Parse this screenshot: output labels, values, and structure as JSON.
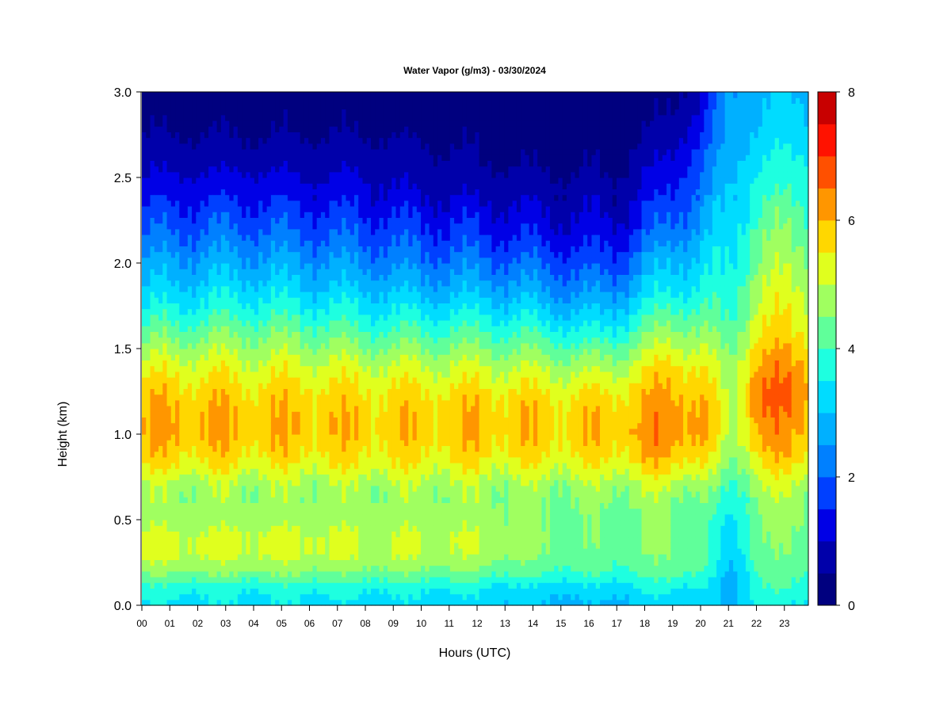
{
  "chart_data": {
    "type": "heatmap",
    "title": "Water Vapor (g/m3) - 03/30/2024",
    "xlabel": "Hours (UTC)",
    "ylabel": "Height (km)",
    "x_ticks": [
      "00",
      "01",
      "02",
      "03",
      "04",
      "05",
      "06",
      "07",
      "08",
      "09",
      "10",
      "11",
      "12",
      "13",
      "14",
      "15",
      "16",
      "17",
      "18",
      "19",
      "20",
      "21",
      "22",
      "23"
    ],
    "xlim": [
      0,
      23.85
    ],
    "y_ticks": [
      "0.0",
      "0.5",
      "1.0",
      "1.5",
      "2.0",
      "2.5",
      "3.0"
    ],
    "ylim": [
      0,
      3.0
    ],
    "colorbar": {
      "range": [
        0,
        8
      ],
      "tick_labels": [
        "0",
        "2",
        "4",
        "6",
        "8"
      ],
      "levels": [
        0,
        0.5,
        1,
        1.5,
        2,
        2.5,
        3,
        3.5,
        4,
        4.5,
        5,
        5.5,
        6,
        6.5,
        7,
        7.5,
        8
      ],
      "colors": [
        "#00007F",
        "#0000AA",
        "#0000E6",
        "#0040FF",
        "#0080FF",
        "#00B0FF",
        "#00DCFF",
        "#1EFFE0",
        "#60FF9A",
        "#A0FF60",
        "#E0FF1E",
        "#FFD700",
        "#FF9600",
        "#FF5000",
        "#FF1200",
        "#C80000",
        "#7F0000"
      ]
    },
    "profile_heights_km": [
      0,
      0.1,
      0.2,
      0.3,
      0.4,
      0.5,
      0.6,
      0.7,
      0.8,
      0.9,
      1.0,
      1.1,
      1.2,
      1.3,
      1.4,
      1.5,
      1.6,
      1.7,
      1.8,
      1.9,
      2.0,
      2.1,
      2.2,
      2.3,
      2.4,
      2.5,
      2.6,
      2.7,
      2.8,
      2.9,
      3.0
    ],
    "profiles": [
      {
        "hour": 0,
        "values": [
          3.4,
          3.7,
          4.6,
          5.1,
          5.1,
          4.8,
          4.7,
          4.8,
          5.4,
          5.8,
          6.0,
          6.0,
          5.9,
          5.6,
          5.2,
          4.7,
          4.2,
          3.7,
          3.2,
          2.9,
          2.6,
          2.2,
          1.9,
          1.6,
          1.3,
          1.0,
          0.8,
          0.6,
          0.4,
          0.3,
          0.2
        ]
      },
      {
        "hour": 2,
        "values": [
          3.4,
          3.7,
          4.6,
          5.1,
          5.1,
          4.8,
          4.7,
          4.8,
          5.4,
          5.8,
          6.1,
          6.0,
          5.9,
          5.6,
          5.3,
          4.8,
          4.3,
          3.8,
          3.4,
          3.0,
          2.7,
          2.3,
          2.0,
          1.7,
          1.4,
          1.1,
          0.8,
          0.6,
          0.4,
          0.3,
          0.2
        ]
      },
      {
        "hour": 4,
        "values": [
          3.4,
          3.6,
          4.6,
          5.1,
          5.1,
          4.8,
          4.7,
          4.8,
          5.3,
          5.7,
          5.9,
          5.9,
          5.8,
          5.5,
          5.2,
          4.8,
          4.4,
          3.9,
          3.5,
          3.1,
          2.7,
          2.4,
          2.0,
          1.7,
          1.4,
          1.1,
          0.8,
          0.6,
          0.4,
          0.3,
          0.2
        ]
      },
      {
        "hour": 6,
        "values": [
          3.4,
          3.7,
          4.6,
          5.1,
          5.1,
          4.8,
          4.7,
          4.8,
          5.3,
          5.7,
          5.9,
          5.9,
          5.8,
          5.5,
          5.2,
          4.7,
          4.3,
          3.8,
          3.3,
          2.9,
          2.6,
          2.2,
          1.9,
          1.6,
          1.3,
          1.0,
          0.8,
          0.6,
          0.4,
          0.3,
          0.2
        ]
      },
      {
        "hour": 8,
        "values": [
          3.3,
          3.6,
          4.5,
          5.0,
          5.0,
          4.8,
          4.7,
          4.8,
          5.3,
          5.6,
          5.8,
          5.8,
          5.7,
          5.4,
          5.1,
          4.6,
          4.1,
          3.6,
          3.2,
          2.8,
          2.4,
          2.1,
          1.8,
          1.5,
          1.2,
          1.0,
          0.8,
          0.6,
          0.4,
          0.3,
          0.2
        ]
      },
      {
        "hour": 10,
        "values": [
          3.3,
          3.6,
          4.5,
          5.0,
          5.0,
          4.8,
          4.7,
          4.8,
          5.3,
          5.6,
          5.8,
          5.8,
          5.7,
          5.4,
          5.0,
          4.5,
          4.0,
          3.5,
          3.0,
          2.6,
          2.2,
          1.9,
          1.6,
          1.3,
          1.0,
          0.8,
          0.7,
          0.5,
          0.3,
          0.2,
          0.1
        ]
      },
      {
        "hour": 12,
        "values": [
          3.2,
          3.5,
          4.4,
          4.9,
          5.0,
          4.8,
          4.7,
          4.8,
          5.3,
          5.7,
          5.9,
          5.9,
          5.8,
          5.4,
          5.0,
          4.5,
          4.0,
          3.5,
          3.0,
          2.6,
          2.2,
          1.8,
          1.5,
          1.2,
          0.9,
          0.7,
          0.5,
          0.4,
          0.3,
          0.2,
          0.1
        ]
      },
      {
        "hour": 14,
        "values": [
          3.0,
          3.3,
          4.1,
          4.5,
          4.6,
          4.5,
          4.5,
          4.7,
          5.2,
          5.6,
          5.8,
          5.8,
          5.7,
          5.3,
          4.9,
          4.4,
          3.9,
          3.3,
          2.8,
          2.4,
          2.0,
          1.6,
          1.3,
          1.0,
          0.8,
          0.6,
          0.4,
          0.3,
          0.2,
          0.1,
          0.1
        ]
      },
      {
        "hour": 16,
        "values": [
          2.8,
          3.2,
          4.0,
          4.3,
          4.4,
          4.4,
          4.5,
          4.7,
          5.2,
          5.6,
          5.8,
          5.8,
          5.6,
          5.2,
          4.7,
          4.1,
          3.5,
          3.0,
          2.5,
          2.1,
          1.7,
          1.4,
          1.1,
          0.9,
          0.7,
          0.5,
          0.4,
          0.3,
          0.2,
          0.1,
          0.1
        ]
      },
      {
        "hour": 17,
        "values": [
          2.9,
          3.3,
          4.0,
          4.3,
          4.4,
          4.4,
          4.5,
          4.8,
          5.3,
          5.7,
          5.9,
          5.9,
          5.7,
          5.3,
          4.9,
          4.3,
          3.7,
          3.2,
          2.7,
          2.2,
          1.8,
          1.5,
          1.2,
          0.9,
          0.7,
          0.5,
          0.4,
          0.3,
          0.2,
          0.1,
          0.1
        ]
      },
      {
        "hour": 18,
        "values": [
          3.1,
          3.5,
          4.2,
          4.4,
          4.5,
          4.5,
          4.6,
          4.9,
          5.5,
          6.0,
          6.2,
          6.1,
          5.9,
          5.7,
          5.3,
          4.8,
          4.3,
          3.8,
          3.3,
          2.9,
          2.5,
          2.1,
          1.7,
          1.4,
          1.2,
          1.0,
          0.8,
          0.6,
          0.4,
          0.3,
          0.2
        ]
      },
      {
        "hour": 19,
        "values": [
          3.2,
          3.6,
          4.3,
          4.5,
          4.5,
          4.5,
          4.6,
          5.0,
          5.6,
          6.1,
          6.3,
          6.3,
          6.2,
          6.0,
          5.7,
          5.2,
          4.7,
          4.2,
          3.7,
          3.3,
          3.0,
          2.6,
          2.2,
          1.9,
          1.6,
          1.4,
          1.1,
          0.9,
          0.7,
          0.5,
          0.4
        ]
      },
      {
        "hour": 20,
        "values": [
          3.2,
          3.5,
          4.1,
          4.3,
          4.3,
          4.3,
          4.4,
          4.8,
          5.4,
          5.9,
          6.2,
          6.2,
          6.0,
          5.8,
          5.5,
          5.0,
          4.6,
          4.2,
          3.8,
          3.5,
          3.2,
          3.0,
          2.7,
          2.4,
          2.2,
          2.0,
          1.8,
          1.6,
          1.3,
          1.1,
          0.9
        ]
      },
      {
        "hour": 21,
        "values": [
          2.7,
          2.7,
          2.8,
          2.9,
          3.1,
          3.3,
          3.5,
          3.8,
          4.2,
          4.5,
          4.7,
          4.8,
          4.8,
          4.7,
          4.5,
          4.3,
          4.0,
          3.8,
          3.6,
          3.5,
          3.4,
          3.3,
          3.2,
          3.1,
          3.0,
          2.9,
          2.8,
          2.7,
          2.7,
          2.6,
          2.5
        ]
      },
      {
        "hour": 22,
        "values": [
          3.6,
          3.9,
          4.1,
          4.3,
          4.4,
          4.5,
          4.6,
          4.9,
          5.3,
          5.8,
          6.1,
          6.3,
          6.6,
          6.4,
          6.1,
          5.8,
          5.4,
          5.2,
          5.0,
          4.8,
          4.6,
          4.4,
          4.2,
          4.0,
          3.8,
          3.6,
          3.4,
          3.2,
          3.0,
          2.9,
          2.8
        ]
      },
      {
        "hour": 23,
        "values": [
          3.5,
          3.9,
          4.2,
          4.4,
          4.5,
          4.6,
          4.7,
          5.0,
          5.5,
          5.9,
          6.1,
          6.3,
          6.4,
          6.4,
          6.2,
          5.9,
          5.6,
          5.4,
          5.2,
          5.0,
          4.8,
          4.6,
          4.4,
          4.2,
          4.0,
          3.8,
          3.6,
          3.4,
          3.2,
          3.1,
          3.0
        ]
      },
      {
        "hour": 23.85,
        "values": [
          3.5,
          3.9,
          4.2,
          4.4,
          4.5,
          4.6,
          4.7,
          5.0,
          5.5,
          5.9,
          6.1,
          6.3,
          6.4,
          6.4,
          6.2,
          5.9,
          5.6,
          5.4,
          5.2,
          5.0,
          4.8,
          4.6,
          4.4,
          4.2,
          4.0,
          3.8,
          3.6,
          3.4,
          3.2,
          3.1,
          3.0
        ]
      }
    ]
  }
}
